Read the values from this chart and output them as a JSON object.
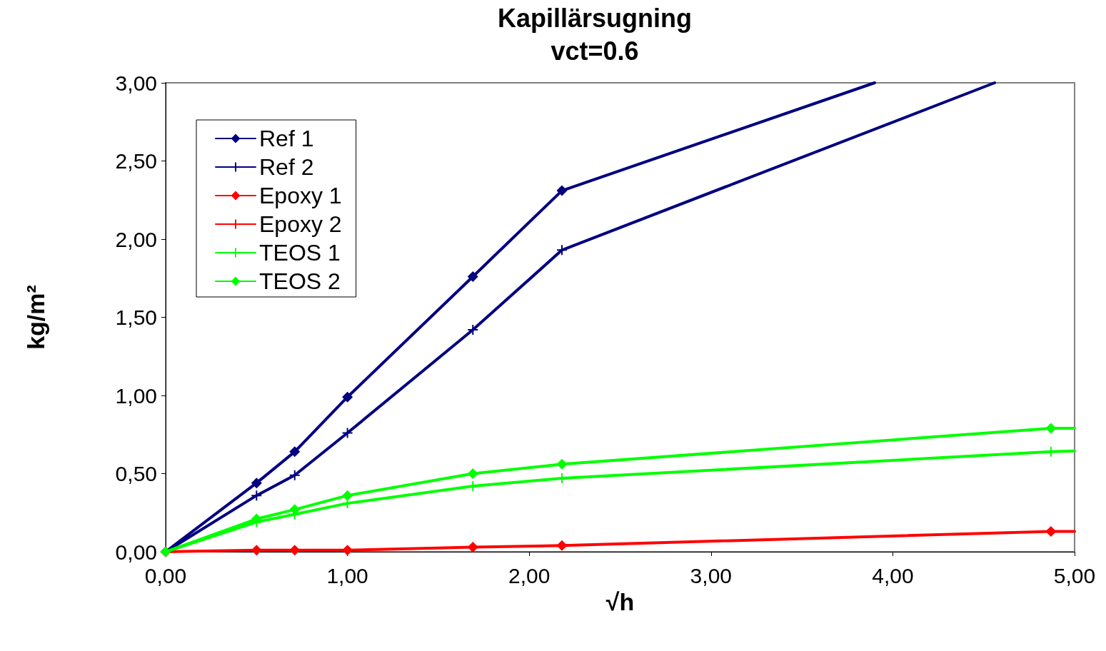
{
  "chart_data": {
    "type": "line",
    "title": "Kapillärsugning",
    "subtitle": "vct=0.6",
    "xlabel": "√h",
    "ylabel": "kg/m²",
    "xlim": [
      0,
      5
    ],
    "ylim": [
      0,
      3
    ],
    "xticks": [
      {
        "value": 0,
        "label": "0,00"
      },
      {
        "value": 1,
        "label": "1,00"
      },
      {
        "value": 2,
        "label": "2,00"
      },
      {
        "value": 3,
        "label": "3,00"
      },
      {
        "value": 4,
        "label": "4,00"
      },
      {
        "value": 5,
        "label": "5,00"
      }
    ],
    "yticks": [
      {
        "value": 0,
        "label": "0,00"
      },
      {
        "value": 0.5,
        "label": "0,50"
      },
      {
        "value": 1,
        "label": "1,00"
      },
      {
        "value": 1.5,
        "label": "1,50"
      },
      {
        "value": 2,
        "label": "2,00"
      },
      {
        "value": 2.5,
        "label": "2,50"
      },
      {
        "value": 3,
        "label": "3,00"
      }
    ],
    "grid": false,
    "legend": "top left",
    "series": [
      {
        "name": "Ref 1",
        "color": "#000080",
        "marker": "diamond",
        "x": [
          0,
          0.5,
          0.71,
          1.0,
          1.69,
          2.18,
          3.9
        ],
        "values": [
          0,
          0.44,
          0.64,
          0.99,
          1.76,
          2.31,
          3.0
        ]
      },
      {
        "name": "Ref 2",
        "color": "#000080",
        "marker": "cross",
        "x": [
          0,
          0.5,
          0.71,
          1.0,
          1.69,
          2.18,
          4.56
        ],
        "values": [
          0,
          0.36,
          0.49,
          0.76,
          1.42,
          1.93,
          3.0
        ]
      },
      {
        "name": "Epoxy 1",
        "color": "#ff0000",
        "marker": "diamond",
        "x": [
          0,
          0.5,
          0.71,
          1.0,
          1.69,
          2.18,
          4.87,
          5
        ],
        "values": [
          0,
          0.01,
          0.01,
          0.01,
          0.03,
          0.04,
          0.13,
          0.13
        ]
      },
      {
        "name": "Epoxy 2",
        "color": "#ff0000",
        "marker": "cross"
      },
      {
        "name": "TEOS 1",
        "color": "#00ff00",
        "marker": "cross",
        "x": [
          0,
          0.5,
          0.71,
          1.0,
          1.69,
          2.18,
          4.87,
          5
        ],
        "values": [
          0,
          0.19,
          0.24,
          0.31,
          0.42,
          0.47,
          0.64,
          0.645
        ]
      },
      {
        "name": "TEOS 2",
        "color": "#00ff00",
        "marker": "diamond",
        "x": [
          0,
          0.5,
          0.71,
          1.0,
          1.69,
          2.18,
          4.87,
          5
        ],
        "values": [
          0,
          0.21,
          0.27,
          0.36,
          0.5,
          0.56,
          0.79,
          0.79
        ]
      }
    ]
  }
}
